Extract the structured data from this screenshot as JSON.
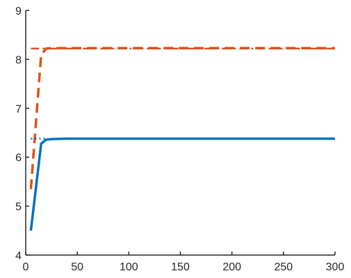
{
  "chart_data": {
    "type": "line",
    "xlim": [
      0,
      300
    ],
    "ylim": [
      4,
      9
    ],
    "x_ticks": [
      0,
      50,
      100,
      150,
      200,
      250,
      300
    ],
    "y_ticks": [
      4,
      5,
      6,
      7,
      8,
      9
    ],
    "x_tick_labels": [
      "0",
      "50",
      "100",
      "150",
      "200",
      "250",
      "300"
    ],
    "y_tick_labels": [
      "4",
      "5",
      "6",
      "7",
      "8",
      "9"
    ],
    "grid": false,
    "series": [
      {
        "style": "dashed",
        "color": "#D95319",
        "x": [
          5,
          15,
          20,
          25,
          40,
          60,
          100,
          150,
          200,
          250,
          300
        ],
        "y": [
          5.35,
          8.1,
          8.22,
          8.23,
          8.23,
          8.23,
          8.23,
          8.23,
          8.23,
          8.23,
          8.23
        ]
      },
      {
        "style": "dash-dot",
        "color": "#D95319",
        "x": [
          5,
          300
        ],
        "y": [
          8.22,
          8.22
        ]
      },
      {
        "style": "solid",
        "color": "#0072BD",
        "x": [
          5,
          15,
          20,
          25,
          40,
          60,
          100,
          150,
          200,
          250,
          300
        ],
        "y": [
          4.5,
          6.28,
          6.36,
          6.37,
          6.38,
          6.38,
          6.38,
          6.38,
          6.38,
          6.38,
          6.38
        ]
      },
      {
        "style": "dotted",
        "color": "#0072BD",
        "x": [
          5,
          20
        ],
        "y": [
          6.38,
          6.38
        ]
      }
    ]
  }
}
